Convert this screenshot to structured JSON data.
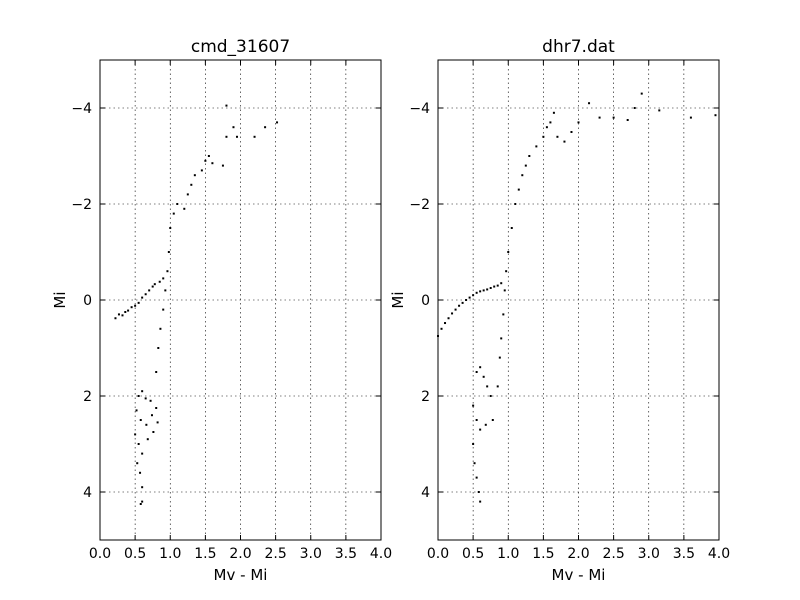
{
  "chart_data": [
    {
      "type": "scatter",
      "title": "cmd_31607",
      "xlabel": "Mv - Mi",
      "ylabel": "Mi",
      "xlim": [
        0.0,
        4.0
      ],
      "ylim": [
        5.0,
        -5.0
      ],
      "y_inverted": true,
      "xticks": [
        "0.0",
        "0.5",
        "1.0",
        "1.5",
        "2.0",
        "2.5",
        "3.0",
        "3.5",
        "4.0"
      ],
      "yticks": [
        "−4",
        "−2",
        "0",
        "2",
        "4"
      ],
      "grid": true,
      "series": [
        {
          "color": "#000000",
          "points": [
            [
              0.22,
              0.38
            ],
            [
              0.27,
              0.3
            ],
            [
              0.32,
              0.32
            ],
            [
              0.36,
              0.25
            ],
            [
              0.4,
              0.22
            ],
            [
              0.45,
              0.15
            ],
            [
              0.5,
              0.12
            ],
            [
              0.55,
              0.06
            ],
            [
              0.6,
              -0.05
            ],
            [
              0.65,
              -0.12
            ],
            [
              0.7,
              -0.2
            ],
            [
              0.75,
              -0.28
            ],
            [
              0.78,
              -0.33
            ],
            [
              0.85,
              -0.38
            ],
            [
              0.9,
              -0.45
            ],
            [
              0.55,
              2.0
            ],
            [
              0.6,
              1.9
            ],
            [
              0.65,
              2.05
            ],
            [
              0.72,
              2.1
            ],
            [
              0.8,
              2.25
            ],
            [
              0.52,
              2.3
            ],
            [
              0.58,
              2.5
            ],
            [
              0.66,
              2.6
            ],
            [
              0.74,
              2.4
            ],
            [
              0.82,
              2.55
            ],
            [
              0.5,
              2.8
            ],
            [
              0.55,
              3.0
            ],
            [
              0.6,
              3.2
            ],
            [
              0.68,
              2.9
            ],
            [
              0.76,
              2.75
            ],
            [
              0.53,
              3.4
            ],
            [
              0.57,
              3.6
            ],
            [
              0.6,
              3.9
            ],
            [
              0.6,
              4.2
            ],
            [
              0.58,
              4.25
            ],
            [
              0.8,
              1.5
            ],
            [
              0.83,
              1.0
            ],
            [
              0.86,
              0.6
            ],
            [
              0.9,
              0.2
            ],
            [
              0.93,
              -0.2
            ],
            [
              0.96,
              -0.6
            ],
            [
              0.98,
              -1.0
            ],
            [
              1.0,
              -1.5
            ],
            [
              1.05,
              -1.8
            ],
            [
              1.1,
              -2.0
            ],
            [
              1.2,
              -1.9
            ],
            [
              1.25,
              -2.2
            ],
            [
              1.3,
              -2.4
            ],
            [
              1.35,
              -2.6
            ],
            [
              1.45,
              -2.7
            ],
            [
              1.5,
              -2.9
            ],
            [
              1.55,
              -3.0
            ],
            [
              1.6,
              -2.85
            ],
            [
              1.75,
              -2.8
            ],
            [
              1.8,
              -3.4
            ],
            [
              1.8,
              -4.05
            ],
            [
              1.9,
              -3.6
            ],
            [
              1.95,
              -3.4
            ],
            [
              2.2,
              -3.4
            ],
            [
              2.35,
              -3.6
            ],
            [
              2.52,
              -3.7
            ]
          ]
        }
      ]
    },
    {
      "type": "scatter",
      "title": "dhr7.dat",
      "xlabel": "Mv - Mi",
      "ylabel": "Mi",
      "xlim": [
        0.0,
        4.0
      ],
      "ylim": [
        5.0,
        -5.0
      ],
      "y_inverted": true,
      "xticks": [
        "0.0",
        "0.5",
        "1.0",
        "1.5",
        "2.0",
        "2.5",
        "3.0",
        "3.5",
        "4.0"
      ],
      "yticks": [
        "−4",
        "−2",
        "0",
        "2",
        "4"
      ],
      "grid": true,
      "series": [
        {
          "color": "#000000",
          "points": [
            [
              0.0,
              0.75
            ],
            [
              0.05,
              0.6
            ],
            [
              0.1,
              0.48
            ],
            [
              0.15,
              0.38
            ],
            [
              0.2,
              0.28
            ],
            [
              0.25,
              0.2
            ],
            [
              0.3,
              0.12
            ],
            [
              0.35,
              0.06
            ],
            [
              0.4,
              0.0
            ],
            [
              0.45,
              -0.05
            ],
            [
              0.5,
              -0.1
            ],
            [
              0.55,
              -0.15
            ],
            [
              0.6,
              -0.18
            ],
            [
              0.65,
              -0.2
            ],
            [
              0.7,
              -0.22
            ],
            [
              0.75,
              -0.25
            ],
            [
              0.8,
              -0.28
            ],
            [
              0.85,
              -0.3
            ],
            [
              0.9,
              -0.35
            ],
            [
              0.55,
              1.5
            ],
            [
              0.6,
              1.4
            ],
            [
              0.65,
              1.6
            ],
            [
              0.7,
              1.8
            ],
            [
              0.75,
              2.0
            ],
            [
              0.5,
              2.2
            ],
            [
              0.55,
              2.5
            ],
            [
              0.6,
              2.7
            ],
            [
              0.68,
              2.6
            ],
            [
              0.78,
              2.5
            ],
            [
              0.5,
              3.0
            ],
            [
              0.52,
              3.4
            ],
            [
              0.55,
              3.7
            ],
            [
              0.58,
              4.0
            ],
            [
              0.6,
              4.2
            ],
            [
              0.85,
              1.8
            ],
            [
              0.88,
              1.2
            ],
            [
              0.9,
              0.8
            ],
            [
              0.93,
              0.3
            ],
            [
              0.95,
              -0.2
            ],
            [
              0.97,
              -0.6
            ],
            [
              1.0,
              -1.0
            ],
            [
              1.05,
              -1.5
            ],
            [
              1.1,
              -2.0
            ],
            [
              1.15,
              -2.3
            ],
            [
              1.2,
              -2.6
            ],
            [
              1.25,
              -2.8
            ],
            [
              1.3,
              -3.0
            ],
            [
              1.4,
              -3.2
            ],
            [
              1.5,
              -3.4
            ],
            [
              1.55,
              -3.6
            ],
            [
              1.6,
              -3.7
            ],
            [
              1.65,
              -3.9
            ],
            [
              1.7,
              -3.4
            ],
            [
              1.8,
              -3.3
            ],
            [
              1.9,
              -3.5
            ],
            [
              2.0,
              -3.7
            ],
            [
              2.15,
              -4.1
            ],
            [
              2.3,
              -3.8
            ],
            [
              2.5,
              -3.8
            ],
            [
              2.7,
              -3.75
            ],
            [
              2.8,
              -4.0
            ],
            [
              2.9,
              -4.3
            ],
            [
              3.15,
              -3.95
            ],
            [
              3.6,
              -3.8
            ],
            [
              3.95,
              -3.85
            ]
          ]
        }
      ]
    }
  ]
}
